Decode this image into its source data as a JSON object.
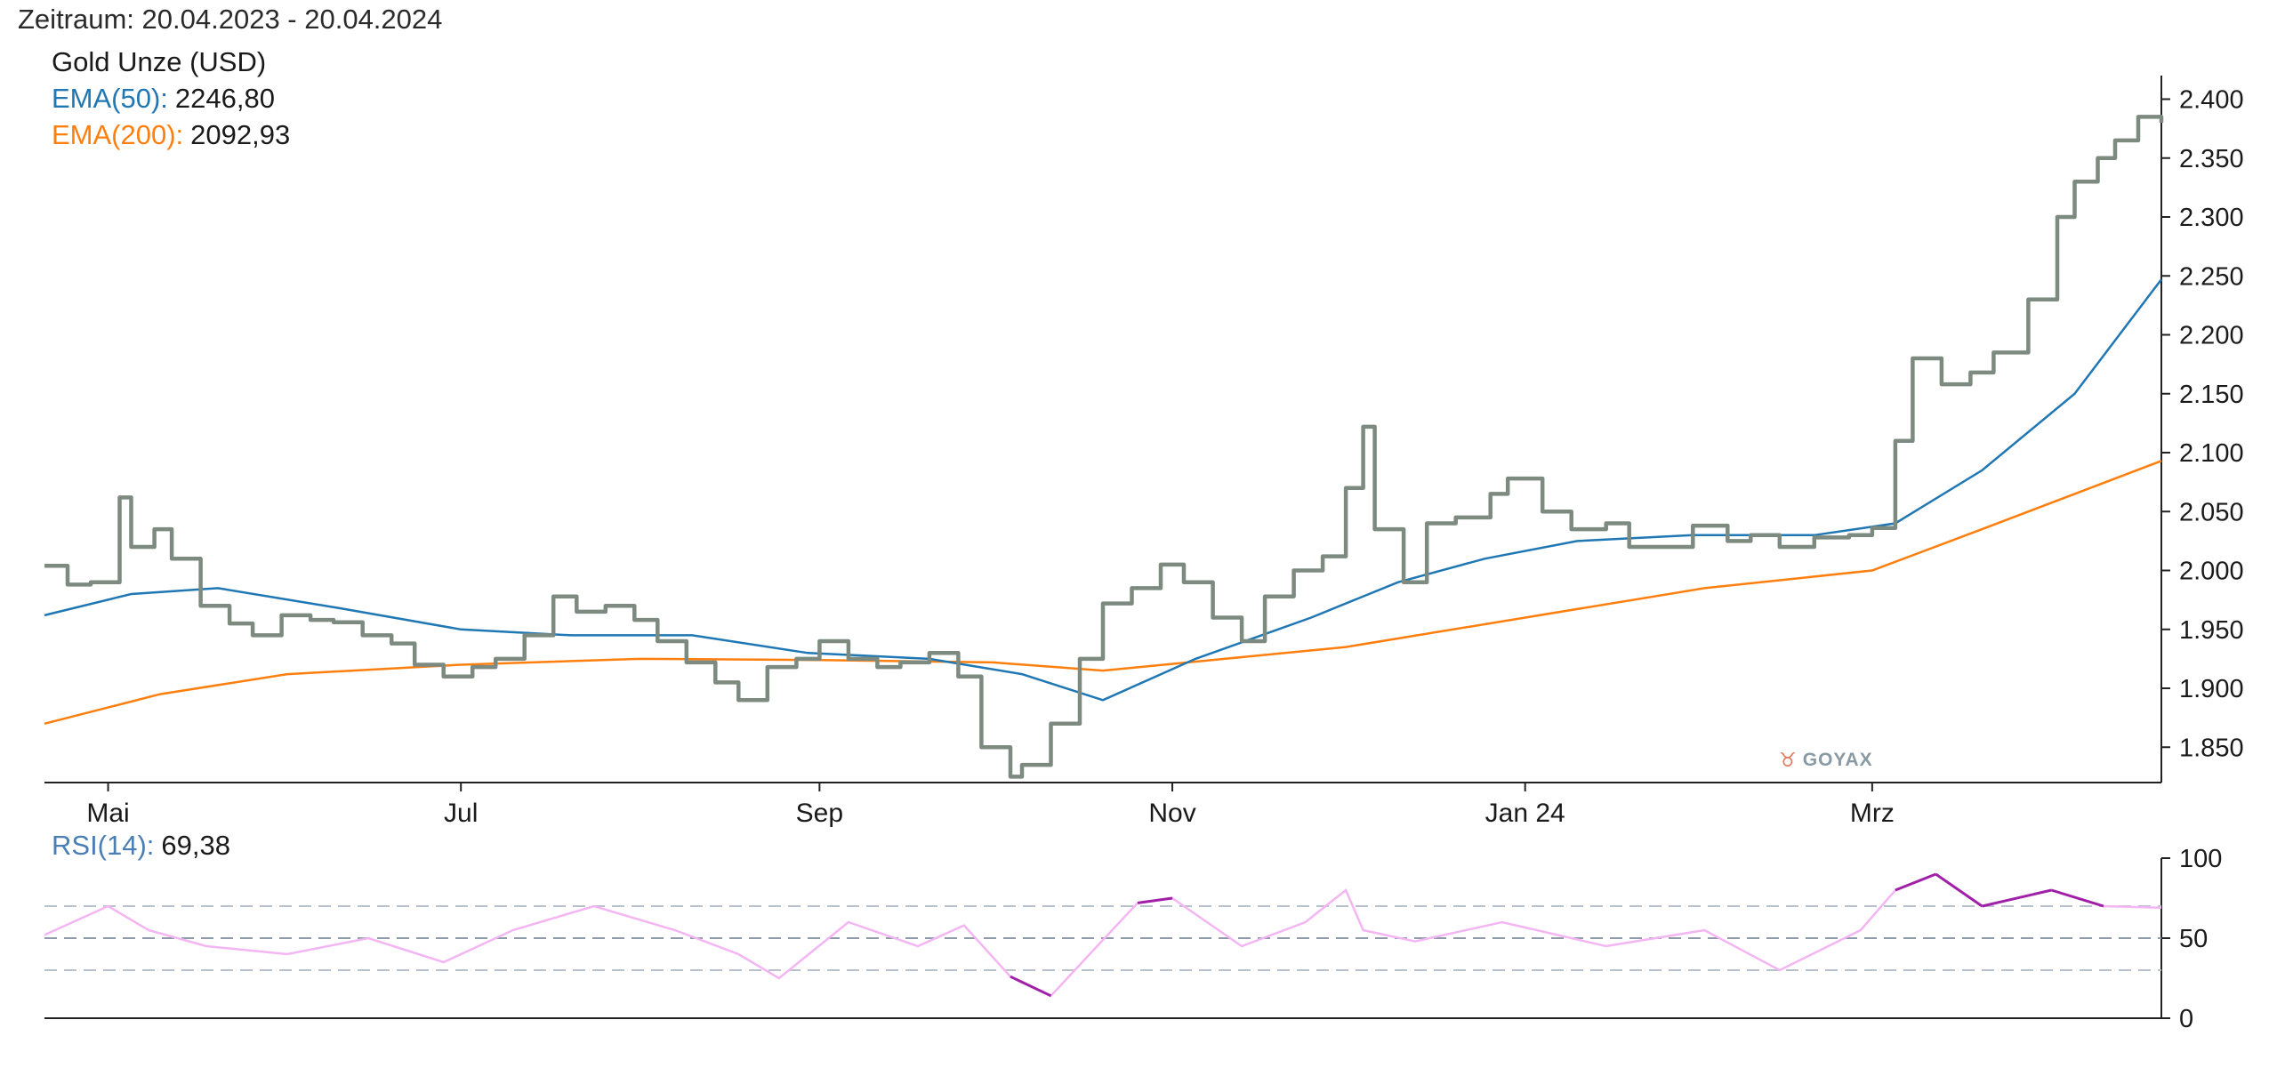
{
  "period_label": "Zeitraum: 20.04.2023 - 20.04.2024",
  "legend": {
    "instrument": "Gold Unze (USD)",
    "ema50_label": "EMA(50):",
    "ema50_value": "2246,80",
    "ema200_label": "EMA(200):",
    "ema200_value": "2092,93",
    "rsi_label": "RSI(14):",
    "rsi_value": "69,38"
  },
  "watermark": "GOYAX",
  "colors": {
    "price": "#7d8a80",
    "ema50": "#1f77b4",
    "ema200": "#ff7f0e",
    "rsi_normal": "#f3b6f3",
    "rsi_extreme": "#a020a8",
    "label_blue": "#1f77b4",
    "label_orange": "#ff7f0e",
    "label_rsi": "#4a7fb5"
  },
  "chart_data": [
    {
      "type": "line",
      "title": "Gold Unze (USD)",
      "x_labels": [
        "Mai",
        "Jul",
        "Sep",
        "Nov",
        "Jan 24",
        "Mrz"
      ],
      "x_label_dates": [
        "2023-05-01",
        "2023-07-01",
        "2023-09-01",
        "2023-11-01",
        "2024-01-01",
        "2024-03-01"
      ],
      "x_range": [
        "2023-04-20",
        "2024-04-20"
      ],
      "y_ticks": [
        1850,
        1900,
        1950,
        2000,
        2050,
        2100,
        2150,
        2200,
        2250,
        2300,
        2350,
        2400
      ],
      "y_tick_labels": [
        "1.850",
        "1.900",
        "1.950",
        "2.000",
        "2.050",
        "2.100",
        "2.150",
        "2.200",
        "2.250",
        "2.300",
        "2.350",
        "2.400"
      ],
      "ylim": [
        1820,
        2420
      ],
      "y_axis_side": "right",
      "grid": false,
      "series": [
        {
          "name": "Gold Unze (USD)",
          "x": [
            "2023-04-20",
            "2023-04-24",
            "2023-04-28",
            "2023-05-03",
            "2023-05-05",
            "2023-05-09",
            "2023-05-12",
            "2023-05-17",
            "2023-05-22",
            "2023-05-26",
            "2023-05-31",
            "2023-06-05",
            "2023-06-09",
            "2023-06-14",
            "2023-06-19",
            "2023-06-23",
            "2023-06-28",
            "2023-07-03",
            "2023-07-07",
            "2023-07-12",
            "2023-07-17",
            "2023-07-21",
            "2023-07-26",
            "2023-07-31",
            "2023-08-04",
            "2023-08-09",
            "2023-08-14",
            "2023-08-18",
            "2023-08-23",
            "2023-08-28",
            "2023-09-01",
            "2023-09-06",
            "2023-09-11",
            "2023-09-15",
            "2023-09-20",
            "2023-09-25",
            "2023-09-29",
            "2023-10-04",
            "2023-10-06",
            "2023-10-11",
            "2023-10-16",
            "2023-10-20",
            "2023-10-25",
            "2023-10-30",
            "2023-11-03",
            "2023-11-08",
            "2023-11-13",
            "2023-11-17",
            "2023-11-22",
            "2023-11-27",
            "2023-12-01",
            "2023-12-04",
            "2023-12-06",
            "2023-12-11",
            "2023-12-15",
            "2023-12-20",
            "2023-12-26",
            "2023-12-29",
            "2024-01-04",
            "2024-01-09",
            "2024-01-15",
            "2024-01-19",
            "2024-01-24",
            "2024-01-30",
            "2024-02-05",
            "2024-02-09",
            "2024-02-14",
            "2024-02-20",
            "2024-02-26",
            "2024-03-01",
            "2024-03-05",
            "2024-03-08",
            "2024-03-13",
            "2024-03-18",
            "2024-03-22",
            "2024-03-28",
            "2024-04-02",
            "2024-04-05",
            "2024-04-09",
            "2024-04-12",
            "2024-04-16",
            "2024-04-20"
          ],
          "values": [
            2004,
            1988,
            1990,
            2062,
            2020,
            2035,
            2010,
            1970,
            1955,
            1945,
            1962,
            1958,
            1956,
            1945,
            1938,
            1920,
            1910,
            1918,
            1925,
            1945,
            1978,
            1965,
            1970,
            1958,
            1940,
            1922,
            1905,
            1890,
            1918,
            1925,
            1940,
            1925,
            1918,
            1922,
            1930,
            1910,
            1850,
            1825,
            1835,
            1870,
            1925,
            1972,
            1985,
            2005,
            1990,
            1960,
            1940,
            1978,
            2000,
            2012,
            2070,
            2122,
            2035,
            1990,
            2040,
            2045,
            2065,
            2078,
            2050,
            2035,
            2040,
            2020,
            2020,
            2038,
            2025,
            2030,
            2020,
            2028,
            2030,
            2036,
            2110,
            2180,
            2158,
            2168,
            2185,
            2230,
            2300,
            2330,
            2350,
            2365,
            2385,
            2380
          ]
        },
        {
          "name": "EMA(50)",
          "x": [
            "2023-04-20",
            "2023-05-05",
            "2023-05-20",
            "2023-06-10",
            "2023-07-01",
            "2023-07-20",
            "2023-08-10",
            "2023-08-30",
            "2023-09-20",
            "2023-10-06",
            "2023-10-20",
            "2023-11-05",
            "2023-11-25",
            "2023-12-10",
            "2023-12-25",
            "2024-01-10",
            "2024-01-30",
            "2024-02-20",
            "2024-03-05",
            "2024-03-20",
            "2024-04-05",
            "2024-04-20"
          ],
          "values": [
            1962,
            1980,
            1985,
            1968,
            1950,
            1945,
            1945,
            1930,
            1925,
            1912,
            1890,
            1925,
            1960,
            1990,
            2010,
            2025,
            2030,
            2030,
            2040,
            2085,
            2150,
            2247
          ]
        },
        {
          "name": "EMA(200)",
          "x": [
            "2023-04-20",
            "2023-05-10",
            "2023-06-01",
            "2023-07-01",
            "2023-08-01",
            "2023-09-01",
            "2023-10-01",
            "2023-10-20",
            "2023-11-10",
            "2023-12-01",
            "2024-01-01",
            "2024-02-01",
            "2024-03-01",
            "2024-03-20",
            "2024-04-05",
            "2024-04-20"
          ],
          "values": [
            1870,
            1895,
            1912,
            1920,
            1925,
            1924,
            1922,
            1915,
            1925,
            1935,
            1960,
            1985,
            2000,
            2035,
            2065,
            2093
          ]
        }
      ]
    },
    {
      "type": "line",
      "title": "RSI(14)",
      "y_ticks": [
        0,
        50,
        100
      ],
      "ylim": [
        0,
        100
      ],
      "y_axis_side": "right",
      "reference_lines": [
        30,
        50,
        70
      ],
      "series": [
        {
          "name": "RSI(14)",
          "x": [
            "2023-04-20",
            "2023-05-01",
            "2023-05-08",
            "2023-05-18",
            "2023-06-01",
            "2023-06-15",
            "2023-06-28",
            "2023-07-10",
            "2023-07-24",
            "2023-08-07",
            "2023-08-18",
            "2023-08-25",
            "2023-09-06",
            "2023-09-18",
            "2023-09-26",
            "2023-10-04",
            "2023-10-11",
            "2023-10-19",
            "2023-10-26",
            "2023-11-01",
            "2023-11-13",
            "2023-11-24",
            "2023-12-01",
            "2023-12-04",
            "2023-12-13",
            "2023-12-28",
            "2024-01-15",
            "2024-02-01",
            "2024-02-14",
            "2024-02-28",
            "2024-03-05",
            "2024-03-12",
            "2024-03-20",
            "2024-04-01",
            "2024-04-10",
            "2024-04-20"
          ],
          "values": [
            52,
            70,
            55,
            45,
            40,
            50,
            35,
            55,
            70,
            55,
            40,
            25,
            60,
            45,
            58,
            26,
            14,
            45,
            72,
            75,
            45,
            60,
            80,
            55,
            48,
            60,
            45,
            55,
            30,
            55,
            80,
            90,
            70,
            80,
            70,
            69
          ]
        }
      ]
    }
  ]
}
